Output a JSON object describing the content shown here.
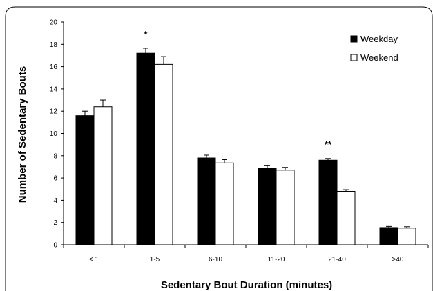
{
  "chart_data": {
    "type": "bar",
    "title": "",
    "xlabel": "Sedentary Bout Duration (minutes)",
    "ylabel": "Number of Sedentary Bouts",
    "ylim": [
      0,
      20
    ],
    "yticks": [
      0,
      2,
      4,
      6,
      8,
      10,
      12,
      14,
      16,
      18,
      20
    ],
    "categories": [
      "< 1",
      "1-5",
      "6-10",
      "11-20",
      "21-40",
      ">40"
    ],
    "series": [
      {
        "name": "Weekday",
        "color": "#000000",
        "values": [
          11.6,
          17.2,
          7.8,
          6.9,
          7.6,
          1.55
        ],
        "errors": [
          0.4,
          0.45,
          0.25,
          0.2,
          0.15,
          0.1
        ]
      },
      {
        "name": "Weekend",
        "color": "#ffffff",
        "values": [
          12.4,
          16.2,
          7.35,
          6.7,
          4.8,
          1.5
        ],
        "errors": [
          0.6,
          0.7,
          0.3,
          0.25,
          0.15,
          0.12
        ]
      }
    ],
    "annotations": [
      {
        "category": "1-5",
        "text": "*"
      },
      {
        "category": "21-40",
        "text": "**"
      }
    ],
    "legend_position": "top-right",
    "grid": false
  }
}
